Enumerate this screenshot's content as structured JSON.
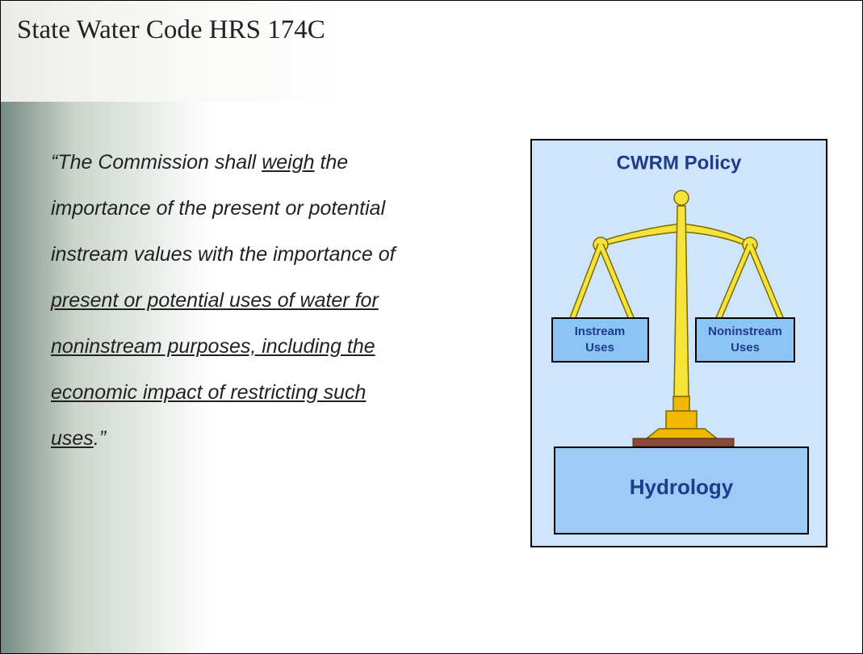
{
  "header": {
    "title": "State Water Code HRS 174C"
  },
  "quote": {
    "lines": [
      [
        {
          "text": "“The Commission shall ",
          "underline": false
        },
        {
          "text": "weigh",
          "underline": true
        },
        {
          "text": " the",
          "underline": false
        }
      ],
      [
        {
          "text": "importance of the present or potential",
          "underline": false
        }
      ],
      [
        {
          "text": "instream values with the importance of",
          "underline": false
        }
      ],
      [
        {
          "text": "present or potential uses of water for",
          "underline": true
        }
      ],
      [
        {
          "text": "noninstream purposes, including the",
          "underline": true
        }
      ],
      [
        {
          "text": "economic impact of restricting such",
          "underline": true
        }
      ],
      [
        {
          "text": "uses",
          "underline": true
        },
        {
          "text": ".”",
          "underline": false
        }
      ]
    ]
  },
  "diagram": {
    "policy": "CWRM Policy",
    "left_box": [
      "Instream",
      "Uses"
    ],
    "right_box": [
      "Noninstream",
      "Uses"
    ],
    "foundation": "Hydrology"
  }
}
